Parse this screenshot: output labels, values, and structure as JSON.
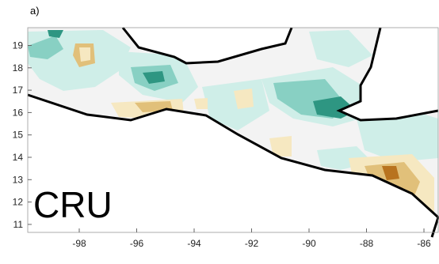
{
  "panel_label": "a)",
  "dataset_label": "CRU",
  "axes": {
    "x_ticks": [
      "-98",
      "-96",
      "-94",
      "-92",
      "-90",
      "-88",
      "-86"
    ],
    "y_ticks": [
      "19",
      "18",
      "17",
      "16",
      "15",
      "14",
      "13",
      "12",
      "11"
    ]
  },
  "colors": {
    "positive_light": "#cfeee8",
    "positive_mid": "#88d0c3",
    "positive_dark": "#2e9682",
    "neutral": "#f2f2f2",
    "negative_light": "#f6e8c1",
    "negative_mid": "#e1c07a",
    "negative_dark": "#b8731f",
    "coastline": "#000000"
  }
}
